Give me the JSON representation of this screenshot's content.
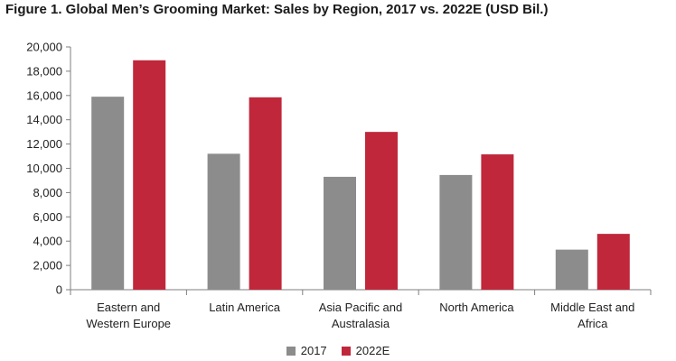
{
  "chart_data": {
    "type": "bar",
    "title": "Figure 1. Global Men’s Grooming Market: Sales by Region, 2017 vs. 2022E (USD Bil.)",
    "categories": [
      [
        "Eastern and",
        "Western Europe"
      ],
      [
        "Latin America"
      ],
      [
        "Asia Pacific and",
        "Australasia"
      ],
      [
        "North America"
      ],
      [
        "Middle East and",
        "Africa"
      ]
    ],
    "series": [
      {
        "name": "2017",
        "color": "#8c8c8c",
        "values": [
          15900,
          11200,
          9300,
          9450,
          3300
        ]
      },
      {
        "name": "2022E",
        "color": "#c0273b",
        "values": [
          18900,
          15850,
          13000,
          11150,
          4600
        ]
      }
    ],
    "yticks": [
      "0",
      "2,000",
      "4,000",
      "6,000",
      "8,000",
      "10,000",
      "12,000",
      "14,000",
      "16,000",
      "18,000",
      "20,000"
    ],
    "ylim": [
      0,
      20000
    ],
    "xlabel": "",
    "ylabel": "",
    "grid": false,
    "legend_position": "bottom"
  }
}
